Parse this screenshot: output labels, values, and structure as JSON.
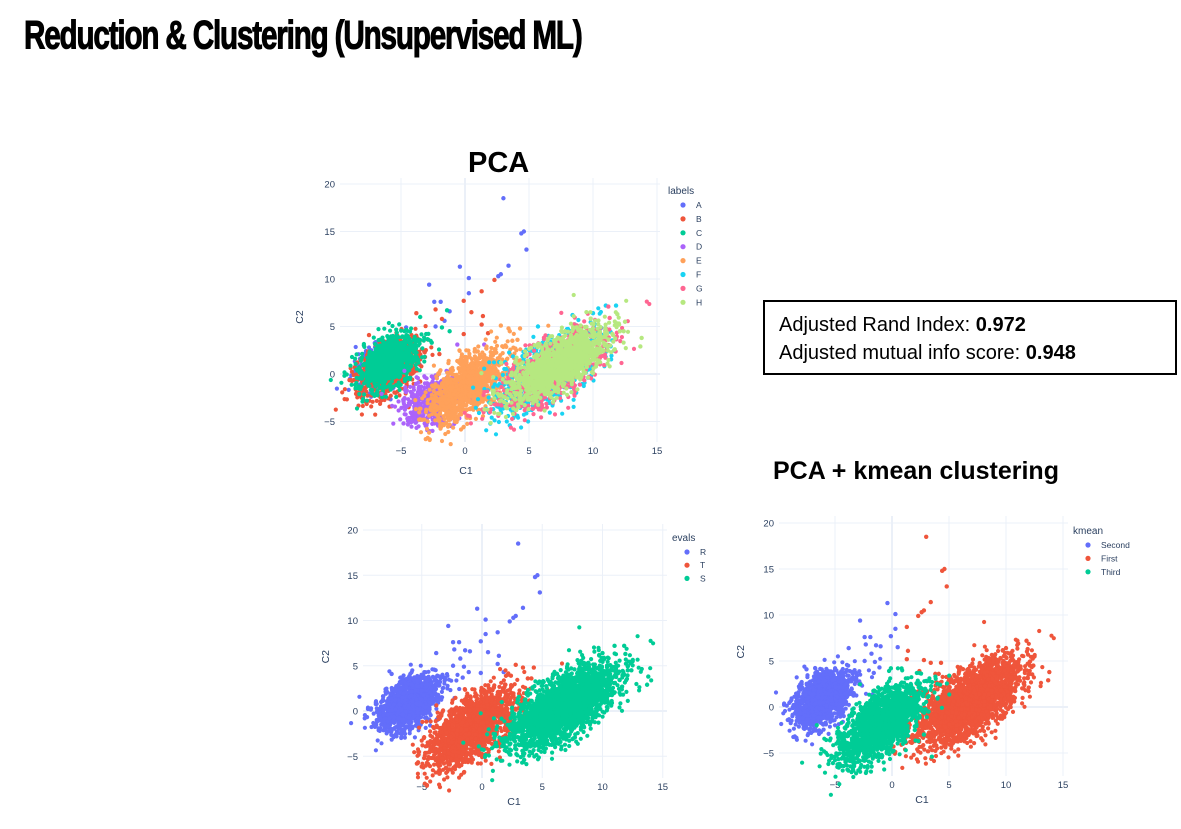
{
  "slide": {
    "title": "Reduction & Clustering (Unsupervised ML)",
    "pca_heading": "PCA",
    "kmeans_heading": "PCA + kmean clustering"
  },
  "metrics": {
    "ari_label": "Adjusted Rand Index: ",
    "ari_value": "0.972",
    "ami_label": "Adjusted mutual info score: ",
    "ami_value": "0.948"
  },
  "chart_data": [
    {
      "type": "scatter",
      "title": "PCA",
      "xlabel": "C1",
      "ylabel": "C2",
      "legend_title": "labels",
      "legend": "right",
      "xlim": [
        -9.5,
        15.3
      ],
      "ylim": [
        -7.5,
        20.5
      ],
      "xticks": [
        -5,
        0,
        5,
        10,
        15
      ],
      "yticks": [
        -5,
        0,
        5,
        10,
        15,
        20
      ],
      "grid": true,
      "series": [
        {
          "name": "A",
          "color": "#636efa",
          "clusters": [
            {
              "center": [
                -6.6,
                0.8
              ],
              "sd": [
                1.0,
                0.7
              ],
              "angle": 35,
              "n": 400
            }
          ],
          "points": [
            [
              3,
              18.5
            ],
            [
              4.4,
              14.8
            ],
            [
              4.6,
              15
            ],
            [
              4.8,
              13.1
            ],
            [
              3.4,
              11.4
            ],
            [
              2.8,
              10.5
            ],
            [
              2.6,
              10.3
            ],
            [
              -0.4,
              11.3
            ],
            [
              0.3,
              10.1
            ],
            [
              0.3,
              8.5
            ],
            [
              -2.8,
              9.4
            ],
            [
              -2.4,
              7.6
            ],
            [
              -1.9,
              7.6
            ],
            [
              -1.2,
              6.6
            ],
            [
              -1.6,
              5.6
            ],
            [
              -2.3,
              5
            ],
            [
              -8.2,
              1.6
            ],
            [
              -8.5,
              0.2
            ],
            [
              -4.6,
              4.9
            ]
          ]
        },
        {
          "name": "B",
          "color": "#EF553B",
          "clusters": [
            {
              "center": [
                -6.0,
                0.6
              ],
              "sd": [
                1.3,
                0.8
              ],
              "angle": 35,
              "n": 800
            }
          ],
          "points": [
            [
              2.3,
              9.9
            ],
            [
              1.3,
              8.7
            ],
            [
              -0.1,
              7.7
            ],
            [
              0.5,
              6.5
            ],
            [
              1.4,
              6.1
            ],
            [
              1.3,
              5.2
            ],
            [
              -0.1,
              4.2
            ],
            [
              1.8,
              4.3
            ],
            [
              -2.3,
              6.8
            ],
            [
              -3.8,
              6.4
            ],
            [
              -1.8,
              5.8
            ],
            [
              -3.5,
              -0.8
            ],
            [
              -2,
              2.1
            ],
            [
              -7.5,
              4.1
            ]
          ]
        },
        {
          "name": "C",
          "color": "#00cc96",
          "clusters": [
            {
              "center": [
                -6.0,
                1.3
              ],
              "sd": [
                1.2,
                0.8
              ],
              "angle": 35,
              "n": 900
            }
          ],
          "points": [
            [
              -1.4,
              6.7
            ],
            [
              -3.5,
              6
            ],
            [
              -1.8,
              4.9
            ],
            [
              -1.2,
              4.5
            ],
            [
              -2.6,
              3.3
            ]
          ]
        },
        {
          "name": "D",
          "color": "#ab63fa",
          "clusters": [
            {
              "center": [
                -2.8,
                -2.9
              ],
              "sd": [
                1.0,
                0.8
              ],
              "angle": 40,
              "n": 500
            }
          ],
          "points": [
            [
              -4.8,
              -5.2
            ],
            [
              -4.8,
              -2.9
            ],
            [
              -4.5,
              -4.7
            ],
            [
              -2.4,
              -5.2
            ],
            [
              1.5,
              3.1
            ],
            [
              -0.6,
              3.1
            ]
          ]
        },
        {
          "name": "E",
          "color": "#FFA15A",
          "clusters": [
            {
              "center": [
                0.2,
                -1.3
              ],
              "sd": [
                1.7,
                0.85
              ],
              "angle": 38,
              "n": 1100
            }
          ],
          "points": [
            [
              2.8,
              5.1
            ],
            [
              3.4,
              4.8
            ],
            [
              4.3,
              4.8
            ],
            [
              3.5,
              4.5
            ],
            [
              4.1,
              3.6
            ],
            [
              3.7,
              3.5
            ],
            [
              2.3,
              2.2
            ]
          ]
        },
        {
          "name": "F",
          "color": "#19d3f3",
          "clusters": [
            {
              "center": [
                6.3,
                0.2
              ],
              "sd": [
                2.4,
                1.0
              ],
              "angle": 30,
              "n": 800
            }
          ],
          "points": [
            [
              10,
              6.4
            ],
            [
              11,
              7.2
            ],
            [
              11.8,
              7.2
            ],
            [
              3.5,
              -5.4
            ],
            [
              2.2,
              -3.7
            ],
            [
              8.4,
              6.2
            ],
            [
              5.7,
              5
            ]
          ]
        },
        {
          "name": "G",
          "color": "#FF6692",
          "clusters": [
            {
              "center": [
                7.0,
                0.4
              ],
              "sd": [
                2.4,
                1.0
              ],
              "angle": 30,
              "n": 700
            }
          ],
          "points": [
            [
              11.2,
              7.1
            ],
            [
              11.3,
              5.9
            ],
            [
              9.2,
              -0.5
            ],
            [
              8.5,
              -2
            ]
          ]
        },
        {
          "name": "H",
          "color": "#B6E880",
          "clusters": [
            {
              "center": [
                7.2,
                1.0
              ],
              "sd": [
                2.1,
                0.85
              ],
              "angle": 30,
              "n": 1300
            }
          ],
          "points": [
            [
              13.7,
              2.9
            ],
            [
              13.8,
              3.8
            ],
            [
              12.4,
              4.5
            ],
            [
              12.1,
              4.5
            ],
            [
              11.9,
              6.3
            ],
            [
              12.5,
              5.5
            ],
            [
              10.9,
              3
            ],
            [
              11.7,
              2.6
            ],
            [
              10,
              0.1
            ]
          ]
        }
      ]
    },
    {
      "type": "scatter",
      "title": "",
      "xlabel": "C1",
      "ylabel": "C2",
      "legend_title": "evals",
      "legend": "right",
      "xlim": [
        -9.5,
        15.3
      ],
      "ylim": [
        -7.5,
        20.5
      ],
      "xticks": [
        -5,
        0,
        5,
        10,
        15
      ],
      "yticks": [
        -5,
        0,
        5,
        10,
        15,
        20
      ],
      "grid": true,
      "series": [
        {
          "name": "R",
          "color": "#636efa",
          "clusters": [
            {
              "center": [
                -6.1,
                0.9
              ],
              "sd": [
                1.3,
                0.8
              ],
              "angle": 35,
              "n": 1500
            }
          ],
          "points": [
            [
              3,
              18.5
            ],
            [
              4.4,
              14.8
            ],
            [
              4.6,
              15
            ],
            [
              4.8,
              13.1
            ],
            [
              3.4,
              11.4
            ],
            [
              2.8,
              10.5
            ],
            [
              2.6,
              10.3
            ],
            [
              2.3,
              9.9
            ],
            [
              1.3,
              8.7
            ],
            [
              -0.4,
              11.3
            ],
            [
              0.3,
              10.1
            ],
            [
              0.3,
              8.5
            ],
            [
              -0.1,
              7.7
            ],
            [
              0.5,
              6.5
            ],
            [
              1.4,
              6.1
            ],
            [
              1.3,
              5.2
            ],
            [
              -0.1,
              4.2
            ],
            [
              1.8,
              4.3
            ],
            [
              -2.8,
              9.4
            ],
            [
              -2.4,
              7.6
            ],
            [
              -1.9,
              7.6
            ],
            [
              -1.4,
              6.7
            ],
            [
              -1,
              6.6
            ],
            [
              -2.3,
              6.8
            ],
            [
              -3.8,
              6.4
            ],
            [
              -1.8,
              5.8
            ],
            [
              -1.5,
              4.9
            ],
            [
              -2.4,
              5
            ],
            [
              -1.1,
              4.3
            ],
            [
              -1.6,
              3.7
            ],
            [
              -8.2,
              1.6
            ],
            [
              -7.5,
              4.1
            ]
          ]
        },
        {
          "name": "T",
          "color": "#EF553B",
          "clusters": [
            {
              "center": [
                -0.9,
                -1.9
              ],
              "sd": [
                2.0,
                0.95
              ],
              "angle": 36,
              "n": 1800
            }
          ],
          "points": [
            [
              2.8,
              5.1
            ],
            [
              3.4,
              4.8
            ],
            [
              4.3,
              4.8
            ],
            [
              3.8,
              3.6
            ],
            [
              4.1,
              3.6
            ],
            [
              2.4,
              3.9
            ],
            [
              -4.8,
              -5.2
            ],
            [
              -4.8,
              -2.9
            ],
            [
              -3.5,
              -0.8
            ]
          ]
        },
        {
          "name": "S",
          "color": "#00cc96",
          "clusters": [
            {
              "center": [
                6.8,
                0.5
              ],
              "sd": [
                2.4,
                1.05
              ],
              "angle": 30,
              "n": 2600
            }
          ],
          "points": [
            [
              10,
              6.4
            ],
            [
              11,
              7.2
            ],
            [
              11.8,
              7.2
            ],
            [
              13.7,
              2.9
            ],
            [
              13.8,
              3.8
            ],
            [
              12.4,
              4.5
            ],
            [
              12.1,
              4.5
            ],
            [
              11.9,
              6.3
            ],
            [
              12.5,
              5.5
            ],
            [
              3.5,
              -5.4
            ],
            [
              2.3,
              -3.7
            ],
            [
              3.2,
              -0.5
            ],
            [
              3.7,
              2
            ]
          ]
        }
      ]
    },
    {
      "type": "scatter",
      "title": "PCA + kmean clustering",
      "xlabel": "C1",
      "ylabel": "C2",
      "legend_title": "kmean",
      "legend": "right",
      "xlim": [
        -9.5,
        15.3
      ],
      "ylim": [
        -7.5,
        20.5
      ],
      "xticks": [
        -5,
        0,
        5,
        10,
        15
      ],
      "yticks": [
        -5,
        0,
        5,
        10,
        15,
        20
      ],
      "grid": true,
      "series": [
        {
          "name": "Second",
          "color": "#636efa",
          "clusters": [
            {
              "center": [
                -6.1,
                0.9
              ],
              "sd": [
                1.3,
                0.8
              ],
              "angle": 35,
              "n": 1500
            }
          ],
          "points": [
            [
              -0.4,
              11.3
            ],
            [
              0.3,
              10.1
            ],
            [
              0.3,
              8.5
            ],
            [
              -0.1,
              7.7
            ],
            [
              0.5,
              6.5
            ],
            [
              -2.8,
              9.4
            ],
            [
              -2.4,
              7.6
            ],
            [
              -1.9,
              7.6
            ],
            [
              -1.4,
              6.7
            ],
            [
              -1,
              6.6
            ],
            [
              -2.3,
              6.8
            ],
            [
              -3.8,
              6.4
            ],
            [
              -1.8,
              5.8
            ],
            [
              -1.5,
              4.9
            ],
            [
              -2.4,
              5
            ],
            [
              -1.1,
              4.3
            ],
            [
              -1.6,
              3.7
            ],
            [
              -8.2,
              1.6
            ],
            [
              -7.5,
              4.1
            ]
          ]
        },
        {
          "name": "First",
          "color": "#EF553B",
          "clusters": [
            {
              "center": [
                6.8,
                0.5
              ],
              "sd": [
                2.4,
                1.05
              ],
              "angle": 30,
              "n": 2600
            }
          ],
          "points": [
            [
              3,
              18.5
            ],
            [
              4.4,
              14.8
            ],
            [
              4.6,
              15
            ],
            [
              4.8,
              13.1
            ],
            [
              3.4,
              11.4
            ],
            [
              2.8,
              10.5
            ],
            [
              2.6,
              10.3
            ],
            [
              2.3,
              9.9
            ],
            [
              1.3,
              8.7
            ],
            [
              1.4,
              6.1
            ],
            [
              1.3,
              5.2
            ],
            [
              2.8,
              5.1
            ],
            [
              3.4,
              4.8
            ],
            [
              4.3,
              4.8
            ],
            [
              3.8,
              3.6
            ],
            [
              4.1,
              3.6
            ],
            [
              2.4,
              3.9
            ],
            [
              2.2,
              2.5
            ],
            [
              2.7,
              1.8
            ],
            [
              13.7,
              2.9
            ],
            [
              13.8,
              3.8
            ],
            [
              12.4,
              4.5
            ],
            [
              12.1,
              4.5
            ],
            [
              11.9,
              6.3
            ],
            [
              12.5,
              5.5
            ],
            [
              10,
              6.4
            ],
            [
              11,
              7.2
            ],
            [
              11.8,
              7.2
            ]
          ]
        },
        {
          "name": "Third",
          "color": "#00cc96",
          "clusters": [
            {
              "center": [
                -1.0,
                -1.8
              ],
              "sd": [
                2.0,
                0.95
              ],
              "angle": 36,
              "n": 1800
            }
          ],
          "points": [
            [
              -0.1,
              4.2
            ],
            [
              -4.8,
              -5.2
            ],
            [
              -4.8,
              -2.9
            ],
            [
              -3.5,
              -0.8
            ],
            [
              3.5,
              -5.4
            ],
            [
              2.3,
              -3.7
            ],
            [
              3.2,
              -0.5
            ],
            [
              2,
              -2.5
            ],
            [
              2.8,
              -3
            ]
          ]
        }
      ]
    }
  ]
}
